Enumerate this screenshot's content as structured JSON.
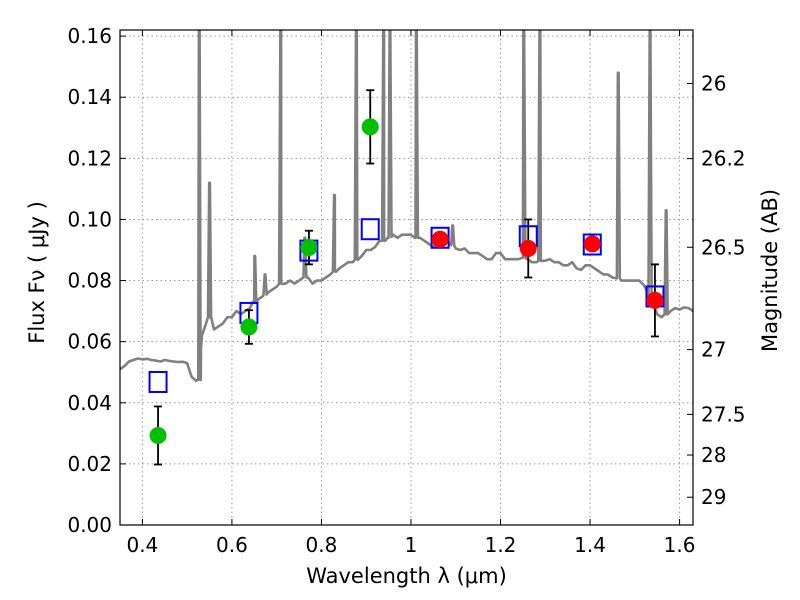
{
  "chart_data": {
    "type": "scatter",
    "xlabel": "Wavelength  λ (μm)",
    "ylabel": "Flux  Fν  ( μJy )",
    "ylabel2": "Magnitude (AB)",
    "xlim": [
      0.35,
      1.63
    ],
    "ylim": [
      0.0,
      0.162
    ],
    "grid": true,
    "x_ticks": [
      0.4,
      0.6,
      0.8,
      1.0,
      1.2,
      1.4,
      1.6
    ],
    "x_tick_labels": [
      "0.4",
      "0.6",
      "0.8",
      "1",
      "1.2",
      "1.4",
      "1.6"
    ],
    "y_ticks": [
      0.0,
      0.02,
      0.04,
      0.06,
      0.08,
      0.1,
      0.12,
      0.14,
      0.16
    ],
    "y_tick_labels": [
      "0.00",
      "0.02",
      "0.04",
      "0.06",
      "0.08",
      "0.10",
      "0.12",
      "0.14",
      "0.16"
    ],
    "y2_ticks": [
      {
        "label": "26",
        "flux": 0.1445
      },
      {
        "label": "26.2",
        "flux": 0.1199
      },
      {
        "label": "26.5",
        "flux": 0.0909
      },
      {
        "label": "27",
        "flux": 0.0574
      },
      {
        "label": "27.5",
        "flux": 0.0362
      },
      {
        "label": "28",
        "flux": 0.0229
      },
      {
        "label": "29",
        "flux": 0.0091
      }
    ],
    "colors": {
      "template": "#808080",
      "model_boxes": "#0000ff",
      "green_points": "#00c000",
      "red_points": "#ff0000",
      "error_bars": "#000000",
      "grid": "#999999"
    },
    "template_spectrum": {
      "name": "",
      "x": [
        0.35,
        0.36,
        0.37,
        0.38,
        0.39,
        0.4,
        0.41,
        0.42,
        0.43,
        0.44,
        0.45,
        0.46,
        0.47,
        0.48,
        0.49,
        0.5,
        0.51,
        0.52,
        0.525,
        0.53,
        0.531,
        0.533,
        0.54,
        0.55,
        0.56,
        0.57,
        0.58,
        0.59,
        0.6,
        0.61,
        0.62,
        0.63,
        0.64,
        0.65,
        0.66,
        0.67,
        0.68,
        0.69,
        0.7,
        0.71,
        0.72,
        0.73,
        0.74,
        0.75,
        0.76,
        0.77,
        0.78,
        0.79,
        0.8,
        0.81,
        0.82,
        0.83,
        0.84,
        0.85,
        0.86,
        0.87,
        0.88,
        0.89,
        0.9,
        0.91,
        0.92,
        0.93,
        0.94,
        0.95,
        0.96,
        0.97,
        0.98,
        0.99,
        1.0,
        1.01,
        1.02,
        1.03,
        1.04,
        1.05,
        1.06,
        1.07,
        1.08,
        1.09,
        1.1,
        1.11,
        1.12,
        1.13,
        1.14,
        1.15,
        1.16,
        1.17,
        1.18,
        1.19,
        1.2,
        1.21,
        1.22,
        1.23,
        1.24,
        1.25,
        1.26,
        1.27,
        1.28,
        1.29,
        1.3,
        1.31,
        1.32,
        1.33,
        1.34,
        1.35,
        1.36,
        1.37,
        1.38,
        1.39,
        1.4,
        1.41,
        1.42,
        1.43,
        1.44,
        1.45,
        1.46,
        1.47,
        1.48,
        1.49,
        1.5,
        1.51,
        1.52,
        1.53,
        1.54,
        1.55,
        1.56,
        1.57,
        1.58,
        1.59,
        1.6,
        1.61,
        1.62,
        1.63
      ],
      "y": [
        0.051,
        0.052,
        0.0535,
        0.054,
        0.0545,
        0.0542,
        0.0544,
        0.054,
        0.0538,
        0.0535,
        0.054,
        0.0537,
        0.0535,
        0.0533,
        0.0534,
        0.053,
        0.0485,
        0.0472,
        0.0475,
        0.0475,
        0.058,
        0.062,
        0.065,
        0.068,
        0.064,
        0.065,
        0.066,
        0.068,
        0.068,
        0.07,
        0.069,
        0.07,
        0.071,
        0.073,
        0.074,
        0.075,
        0.076,
        0.077,
        0.078,
        0.079,
        0.079,
        0.08,
        0.079,
        0.08,
        0.081,
        0.081,
        0.079,
        0.08,
        0.08,
        0.081,
        0.082,
        0.083,
        0.084,
        0.085,
        0.086,
        0.086,
        0.087,
        0.088,
        0.09,
        0.09,
        0.091,
        0.093,
        0.093,
        0.094,
        0.095,
        0.094,
        0.095,
        0.095,
        0.095,
        0.094,
        0.094,
        0.093,
        0.092,
        0.091,
        0.0935,
        0.0935,
        0.093,
        0.092,
        0.0905,
        0.09,
        0.0905,
        0.089,
        0.089,
        0.089,
        0.088,
        0.087,
        0.087,
        0.089,
        0.089,
        0.087,
        0.087,
        0.087,
        0.087,
        0.0875,
        0.087,
        0.086,
        0.086,
        0.0865,
        0.0865,
        0.087,
        0.086,
        0.086,
        0.085,
        0.085,
        0.086,
        0.084,
        0.0835,
        0.085,
        0.085,
        0.084,
        0.083,
        0.082,
        0.082,
        0.081,
        0.081,
        0.08,
        0.08,
        0.08,
        0.08,
        0.08,
        0.0785,
        0.076,
        0.073,
        0.069,
        0.068,
        0.069,
        0.07,
        0.071,
        0.0705,
        0.0712,
        0.071,
        0.07
      ],
      "emission_lines": [
        {
          "x": 0.527,
          "peak": 0.17
        },
        {
          "x": 0.55,
          "peak": 0.112
        },
        {
          "x": 0.651,
          "peak": 0.088
        },
        {
          "x": 0.674,
          "peak": 0.082
        },
        {
          "x": 0.709,
          "peak": 0.17
        },
        {
          "x": 0.763,
          "peak": 0.094
        },
        {
          "x": 0.829,
          "peak": 0.108
        },
        {
          "x": 0.878,
          "peak": 0.17
        },
        {
          "x": 0.939,
          "peak": 0.17
        },
        {
          "x": 0.953,
          "peak": 0.17
        },
        {
          "x": 1.012,
          "peak": 0.17
        },
        {
          "x": 1.093,
          "peak": 0.098
        },
        {
          "x": 1.252,
          "peak": 0.17
        },
        {
          "x": 1.288,
          "peak": 0.17
        },
        {
          "x": 1.463,
          "peak": 0.148
        },
        {
          "x": 1.534,
          "peak": 0.17
        },
        {
          "x": 1.57,
          "peak": 0.103
        }
      ]
    },
    "model_boxes": {
      "name": "",
      "x": [
        0.435,
        0.638,
        0.772,
        0.909,
        1.065,
        1.262,
        1.405,
        1.545
      ],
      "y": [
        0.0468,
        0.0694,
        0.0898,
        0.0968,
        0.094,
        0.0945,
        0.0918,
        0.0748
      ]
    },
    "green_points": {
      "name": "",
      "x": [
        0.435,
        0.638,
        0.772,
        0.909
      ],
      "y": [
        0.0293,
        0.0648,
        0.0908,
        0.1303
      ],
      "yerr": [
        0.0095,
        0.0055,
        0.0055,
        0.012
      ]
    },
    "red_points": {
      "name": "",
      "x": [
        1.065,
        1.262,
        1.405,
        1.545
      ],
      "y": [
        0.0935,
        0.0905,
        0.092,
        0.0735
      ],
      "yerr": [
        0,
        0.0095,
        0,
        0.0118
      ]
    }
  }
}
